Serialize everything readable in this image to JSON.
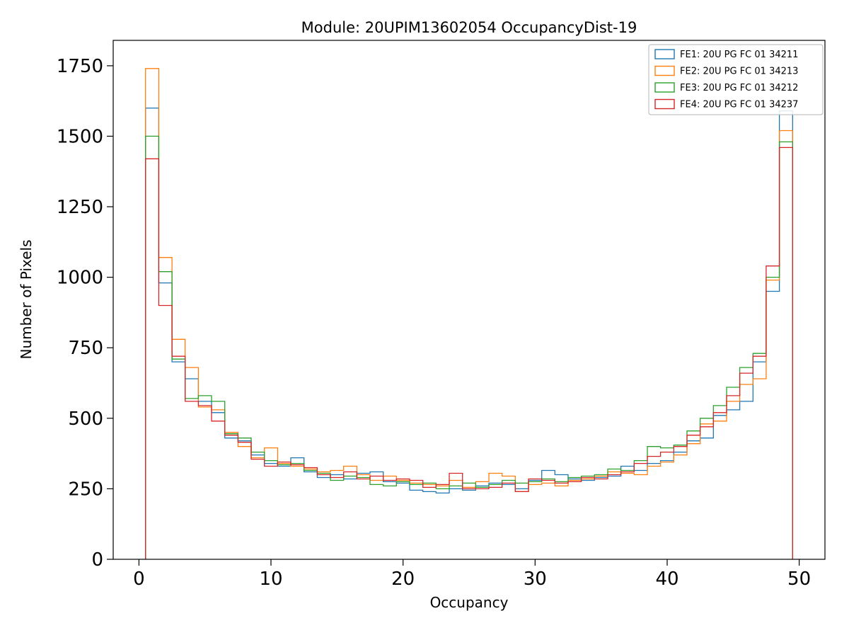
{
  "chart_data": {
    "type": "bar",
    "subtype": "step-histogram",
    "title": "Module: 20UPIM13602054 OccupancyDist-19",
    "xlabel": "Occupancy",
    "ylabel": "Number of Pixels",
    "bin_start": 0.5,
    "bin_width": 1,
    "xlim": [
      -1.95,
      51.95
    ],
    "ylim": [
      0,
      1840
    ],
    "xticks": [
      0,
      10,
      20,
      30,
      40,
      50
    ],
    "yticks": [
      0,
      250,
      500,
      750,
      1000,
      1250,
      1500,
      1750
    ],
    "grid": false,
    "legend_position": "upper right",
    "series": [
      {
        "name": "FE1: 20U PG FC 01 34211",
        "color": "#1f77b4",
        "values": [
          1600,
          980,
          700,
          640,
          560,
          520,
          430,
          420,
          370,
          340,
          330,
          360,
          310,
          290,
          300,
          285,
          305,
          310,
          275,
          270,
          245,
          240,
          235,
          250,
          245,
          260,
          270,
          265,
          250,
          280,
          315,
          300,
          285,
          280,
          290,
          295,
          330,
          315,
          340,
          350,
          380,
          420,
          430,
          510,
          530,
          560,
          700,
          950,
          1590
        ]
      },
      {
        "name": "FE2: 20U PG FC 01 34213",
        "color": "#ff7f0e",
        "values": [
          1740,
          1070,
          780,
          680,
          540,
          530,
          450,
          400,
          360,
          395,
          340,
          330,
          320,
          310,
          315,
          330,
          300,
          280,
          295,
          280,
          270,
          265,
          260,
          280,
          255,
          275,
          305,
          295,
          240,
          265,
          270,
          260,
          280,
          285,
          295,
          310,
          305,
          300,
          330,
          345,
          370,
          410,
          480,
          490,
          560,
          620,
          640,
          990,
          1520
        ]
      },
      {
        "name": "FE3: 20U PG FC 01 34212",
        "color": "#2ca02c",
        "values": [
          1500,
          1020,
          710,
          570,
          580,
          560,
          445,
          430,
          380,
          350,
          335,
          340,
          315,
          305,
          280,
          295,
          290,
          265,
          260,
          275,
          265,
          270,
          250,
          260,
          270,
          255,
          265,
          280,
          270,
          275,
          285,
          275,
          290,
          295,
          300,
          320,
          315,
          350,
          400,
          395,
          405,
          455,
          500,
          545,
          610,
          680,
          730,
          1000,
          1480
        ]
      },
      {
        "name": "FE4: 20U PG FC 01 34237",
        "color": "#d62728",
        "values": [
          1420,
          900,
          720,
          560,
          545,
          490,
          440,
          415,
          355,
          330,
          345,
          335,
          325,
          300,
          290,
          310,
          285,
          295,
          280,
          285,
          280,
          255,
          265,
          305,
          250,
          250,
          255,
          270,
          240,
          285,
          280,
          270,
          275,
          290,
          285,
          300,
          310,
          340,
          365,
          380,
          400,
          440,
          470,
          520,
          580,
          660,
          720,
          1040,
          1460
        ]
      }
    ]
  }
}
